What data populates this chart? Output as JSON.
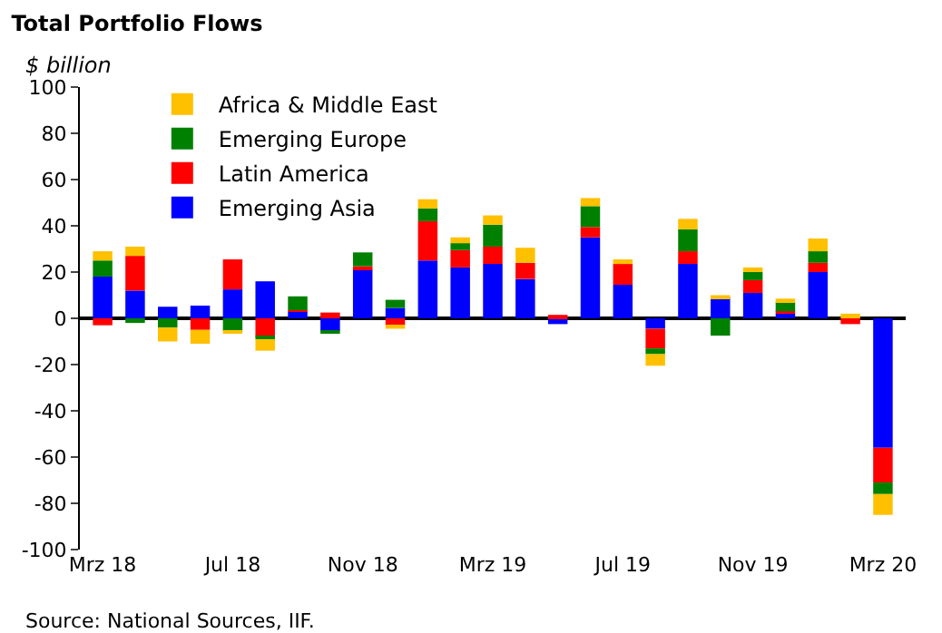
{
  "chart_data": {
    "type": "bar",
    "title": "Total Portfolio Flows",
    "ylabel": "$ billion",
    "stacked": true,
    "categories": [
      "Mrz 18",
      null,
      null,
      null,
      "Jul 18",
      null,
      null,
      null,
      "Nov 18",
      null,
      null,
      null,
      "Mrz 19",
      null,
      null,
      null,
      "Jul 19",
      null,
      null,
      null,
      "Nov 19",
      null,
      null,
      null,
      "Mrz 20"
    ],
    "series": [
      {
        "name": "Emerging Asia",
        "color": "#0000ff",
        "values": [
          18,
          12,
          5,
          5.5,
          12.5,
          16,
          3,
          -5.5,
          21,
          4.5,
          25,
          22,
          23.5,
          17,
          -2.5,
          35,
          14.5,
          -4.5,
          23.5,
          9,
          11,
          2,
          20,
          0,
          -56
        ]
      },
      {
        "name": "Latin America",
        "color": "#ff0000",
        "values": [
          -3,
          15,
          0,
          -5,
          13,
          -8,
          0.5,
          2.5,
          1.5,
          -3,
          17,
          7.5,
          7.5,
          7,
          1.5,
          4.5,
          9,
          -8.5,
          5.5,
          0,
          5.5,
          1,
          4,
          -2.5,
          -15
        ]
      },
      {
        "name": "Emerging Europe",
        "color": "#008000",
        "values": [
          7,
          -2,
          -4,
          0,
          -5.5,
          -1,
          6,
          -1,
          6,
          3.5,
          5.5,
          3,
          9.5,
          0,
          0,
          9,
          0,
          -2.5,
          9.5,
          -7.5,
          3.5,
          4,
          5,
          0,
          -5
        ]
      },
      {
        "name": "Africa & Middle East",
        "color": "#ffc000",
        "values": [
          4,
          4,
          -6,
          -6,
          -1,
          -5,
          0,
          0,
          0,
          -1.5,
          4,
          2.5,
          4,
          6.5,
          0,
          3.5,
          2,
          -5,
          4.5,
          1,
          2,
          1.5,
          5.5,
          2,
          -9
        ]
      }
    ],
    "ylim": [
      -100,
      100
    ],
    "yticks": [
      -100,
      -80,
      -60,
      -40,
      -20,
      0,
      20,
      40,
      60,
      80,
      100
    ],
    "legend": "top left",
    "annotations": [
      "Source: National Sources, IIF."
    ]
  }
}
